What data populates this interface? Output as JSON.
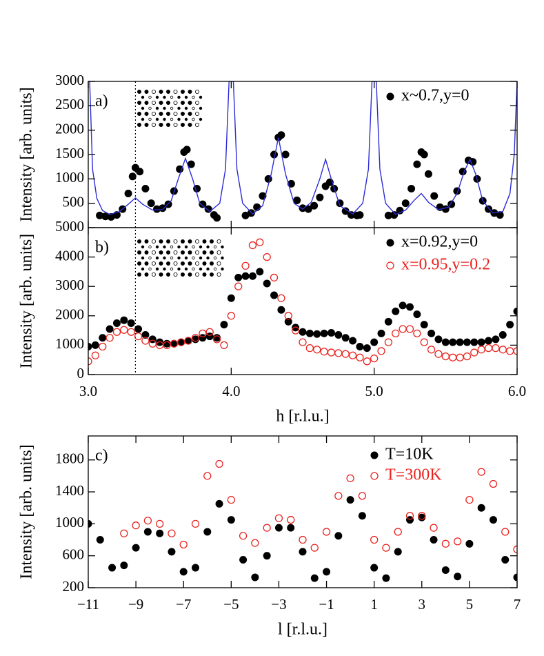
{
  "chart_data": [
    {
      "type": "scatter",
      "panel_label": "a)",
      "ylabel": "Intensity [arb. units]",
      "xlim": [
        3,
        6
      ],
      "xticks": [
        3,
        4,
        5,
        6
      ],
      "ylim": [
        0,
        3000
      ],
      "yticks": [
        500,
        1000,
        1500,
        2000,
        2500,
        3000
      ],
      "reference_line_x": 3.33,
      "series": [
        {
          "name": "x~0.7,y=0",
          "color": "#000000",
          "marker": "filled",
          "x": [
            3.08,
            3.12,
            3.16,
            3.2,
            3.24,
            3.28,
            3.31,
            3.33,
            3.36,
            3.4,
            3.44,
            3.48,
            3.52,
            3.56,
            3.6,
            3.64,
            3.67,
            3.69,
            3.72,
            3.76,
            3.8,
            3.84,
            3.88,
            3.9,
            4.1,
            4.14,
            4.18,
            4.22,
            4.26,
            4.3,
            4.33,
            4.35,
            4.38,
            4.42,
            4.46,
            4.5,
            4.54,
            4.58,
            4.62,
            4.66,
            4.69,
            4.72,
            4.76,
            4.8,
            4.84,
            4.88,
            4.9,
            5.1,
            5.14,
            5.18,
            5.22,
            5.26,
            5.3,
            5.33,
            5.35,
            5.38,
            5.42,
            5.46,
            5.5,
            5.54,
            5.58,
            5.62,
            5.66,
            5.69,
            5.72,
            5.76,
            5.8,
            5.84,
            5.88
          ],
          "values": [
            250,
            230,
            220,
            260,
            380,
            700,
            1050,
            1230,
            1150,
            800,
            500,
            380,
            400,
            480,
            750,
            1200,
            1550,
            1600,
            1300,
            800,
            480,
            380,
            260,
            200,
            250,
            300,
            420,
            650,
            1000,
            1500,
            1850,
            1900,
            1500,
            900,
            560,
            400,
            380,
            450,
            620,
            850,
            930,
            800,
            500,
            340,
            260,
            250,
            260,
            250,
            260,
            350,
            500,
            800,
            1300,
            1550,
            1500,
            1100,
            650,
            420,
            380,
            480,
            750,
            1150,
            1380,
            1350,
            1000,
            550,
            380,
            300,
            260
          ]
        },
        {
          "color": "#2b2bd6",
          "marker": "line",
          "x": [
            3.01,
            3.03,
            3.06,
            3.1,
            3.15,
            3.22,
            3.28,
            3.33,
            3.38,
            3.45,
            3.52,
            3.58,
            3.63,
            3.68,
            3.73,
            3.78,
            3.85,
            3.92,
            3.96,
            3.985,
            4.015,
            4.04,
            4.08,
            4.15,
            4.22,
            4.28,
            4.33,
            4.38,
            4.44,
            4.5,
            4.56,
            4.62,
            4.66,
            4.7,
            4.76,
            4.85,
            4.92,
            4.96,
            4.985,
            5.015,
            5.04,
            5.08,
            5.15,
            5.22,
            5.28,
            5.33,
            5.38,
            5.45,
            5.52,
            5.58,
            5.63,
            5.67,
            5.71,
            5.76,
            5.83,
            5.9,
            5.95,
            5.98,
            6.0
          ],
          "values": [
            3000,
            1200,
            600,
            350,
            270,
            330,
            480,
            610,
            480,
            360,
            370,
            550,
            1000,
            1420,
            1000,
            500,
            330,
            500,
            1200,
            3000,
            3000,
            1200,
            500,
            280,
            450,
            1100,
            1850,
            1100,
            500,
            380,
            520,
            1000,
            1400,
            1000,
            450,
            280,
            500,
            1200,
            3000,
            3000,
            1200,
            500,
            270,
            360,
            560,
            700,
            520,
            370,
            420,
            700,
            1150,
            1400,
            1100,
            550,
            300,
            330,
            700,
            1500,
            3000
          ]
        }
      ]
    },
    {
      "type": "scatter",
      "panel_label": "b)",
      "ylabel": "Intensity [arb. units]",
      "xlabel": "h [r.l.u.]",
      "xlim": [
        3,
        6
      ],
      "xticks": [
        {
          "value": 3,
          "label": "3.0"
        },
        {
          "value": 4,
          "label": "4.0"
        },
        {
          "value": 5,
          "label": "5.0"
        },
        {
          "value": 6,
          "label": "6.0"
        }
      ],
      "ylim": [
        0,
        5000
      ],
      "yticks": [
        0,
        1000,
        2000,
        3000,
        4000,
        5000
      ],
      "series": [
        {
          "name": "x=0.92,y=0",
          "color": "#000000",
          "marker": "filled",
          "x": [
            3.0,
            3.05,
            3.1,
            3.15,
            3.2,
            3.25,
            3.3,
            3.35,
            3.4,
            3.45,
            3.5,
            3.55,
            3.6,
            3.65,
            3.7,
            3.75,
            3.8,
            3.85,
            3.9,
            3.95,
            4.0,
            4.05,
            4.1,
            4.15,
            4.2,
            4.25,
            4.3,
            4.35,
            4.4,
            4.45,
            4.5,
            4.55,
            4.6,
            4.65,
            4.7,
            4.75,
            4.8,
            4.85,
            4.9,
            4.95,
            5.0,
            5.05,
            5.1,
            5.15,
            5.2,
            5.25,
            5.3,
            5.35,
            5.4,
            5.45,
            5.5,
            5.55,
            5.6,
            5.65,
            5.7,
            5.75,
            5.8,
            5.85,
            5.9,
            5.95,
            6.0
          ],
          "values": [
            950,
            1000,
            1250,
            1550,
            1750,
            1850,
            1750,
            1550,
            1350,
            1200,
            1100,
            1050,
            1050,
            1100,
            1150,
            1200,
            1250,
            1300,
            1250,
            1700,
            2600,
            3300,
            3350,
            3350,
            3500,
            3100,
            2700,
            2200,
            1800,
            1600,
            1450,
            1400,
            1380,
            1400,
            1420,
            1350,
            1250,
            1150,
            950,
            900,
            1100,
            1400,
            1800,
            2150,
            2350,
            2300,
            2050,
            1700,
            1400,
            1200,
            1100,
            1100,
            1100,
            1100,
            1100,
            1100,
            1150,
            1200,
            1350,
            1700,
            2150
          ]
        },
        {
          "name": "x=0.95,y=0.2",
          "color": "#e8231f",
          "marker": "open",
          "x": [
            3.0,
            3.05,
            3.1,
            3.15,
            3.2,
            3.25,
            3.3,
            3.35,
            3.4,
            3.45,
            3.5,
            3.55,
            3.6,
            3.65,
            3.7,
            3.75,
            3.8,
            3.85,
            3.9,
            3.95,
            4.0,
            4.05,
            4.1,
            4.15,
            4.2,
            4.25,
            4.3,
            4.35,
            4.4,
            4.45,
            4.5,
            4.55,
            4.6,
            4.65,
            4.7,
            4.75,
            4.8,
            4.85,
            4.9,
            4.95,
            5.0,
            5.05,
            5.1,
            5.15,
            5.2,
            5.25,
            5.3,
            5.35,
            5.4,
            5.45,
            5.5,
            5.55,
            5.6,
            5.65,
            5.7,
            5.75,
            5.8,
            5.85,
            5.9,
            5.95,
            6.0
          ],
          "values": [
            450,
            650,
            950,
            1250,
            1450,
            1520,
            1450,
            1300,
            1150,
            1050,
            1000,
            1000,
            1050,
            1100,
            1150,
            1250,
            1400,
            1450,
            1200,
            1000,
            2000,
            3000,
            3700,
            4400,
            4500,
            4000,
            3300,
            2600,
            2000,
            1500,
            1100,
            900,
            850,
            780,
            750,
            730,
            700,
            650,
            580,
            450,
            550,
            800,
            1100,
            1400,
            1550,
            1550,
            1400,
            1100,
            850,
            700,
            620,
            580,
            580,
            620,
            750,
            850,
            900,
            900,
            850,
            800,
            800
          ]
        }
      ]
    },
    {
      "type": "scatter",
      "panel_label": "c)",
      "ylabel": "Intensity [arb. units]",
      "xlabel": "l [r.l.u.]",
      "xlim": [
        -11,
        7
      ],
      "xticks": [
        {
          "value": -11,
          "label": "−11"
        },
        {
          "value": -9,
          "label": "−9"
        },
        {
          "value": -7,
          "label": "−7"
        },
        {
          "value": -5,
          "label": "−5"
        },
        {
          "value": -3,
          "label": "−3"
        },
        {
          "value": -1,
          "label": "−1"
        },
        1,
        3,
        5,
        7
      ],
      "ylim": [
        200,
        2100
      ],
      "yticks": [
        200,
        600,
        1000,
        1400,
        1800
      ],
      "series": [
        {
          "name": "T=10K",
          "color": "#000000",
          "marker": "filled",
          "x": [
            -11,
            -10.5,
            -10,
            -9.5,
            -9,
            -8.5,
            -8,
            -7.5,
            -7,
            -6.5,
            -6,
            -5.5,
            -5,
            -4.5,
            -4,
            -3.5,
            -3,
            -2.5,
            -2,
            -1.5,
            -1,
            -0.5,
            0,
            0.5,
            1,
            1.5,
            2,
            2.5,
            3,
            3.5,
            4,
            4.5,
            5,
            5.5,
            6,
            6.5,
            7
          ],
          "values": [
            1000,
            800,
            450,
            480,
            700,
            900,
            880,
            650,
            400,
            450,
            900,
            1250,
            1050,
            550,
            330,
            600,
            950,
            950,
            650,
            320,
            400,
            850,
            1300,
            1100,
            450,
            320,
            650,
            1050,
            1080,
            800,
            420,
            340,
            750,
            1200,
            1050,
            550,
            330
          ]
        },
        {
          "name": "T=300K",
          "color": "#e8231f",
          "marker": "open",
          "x": [
            -9.5,
            -9,
            -8.5,
            -8,
            -7.5,
            -7,
            -6.5,
            -6,
            -5.5,
            -5,
            -4.5,
            -4,
            -3.5,
            -3,
            -2.5,
            -2,
            -1.5,
            -1,
            -0.5,
            0,
            0.5,
            1,
            1.5,
            2,
            2.5,
            3,
            3.5,
            4,
            4.5,
            5,
            5.5,
            6,
            6.5,
            7
          ],
          "values": [
            880,
            980,
            1040,
            1000,
            880,
            740,
            1000,
            1600,
            1750,
            1300,
            850,
            760,
            950,
            1070,
            1050,
            800,
            700,
            900,
            1350,
            1570,
            1350,
            800,
            700,
            900,
            1100,
            1100,
            950,
            750,
            780,
            1300,
            1650,
            1500,
            900,
            680
          ]
        }
      ]
    }
  ]
}
